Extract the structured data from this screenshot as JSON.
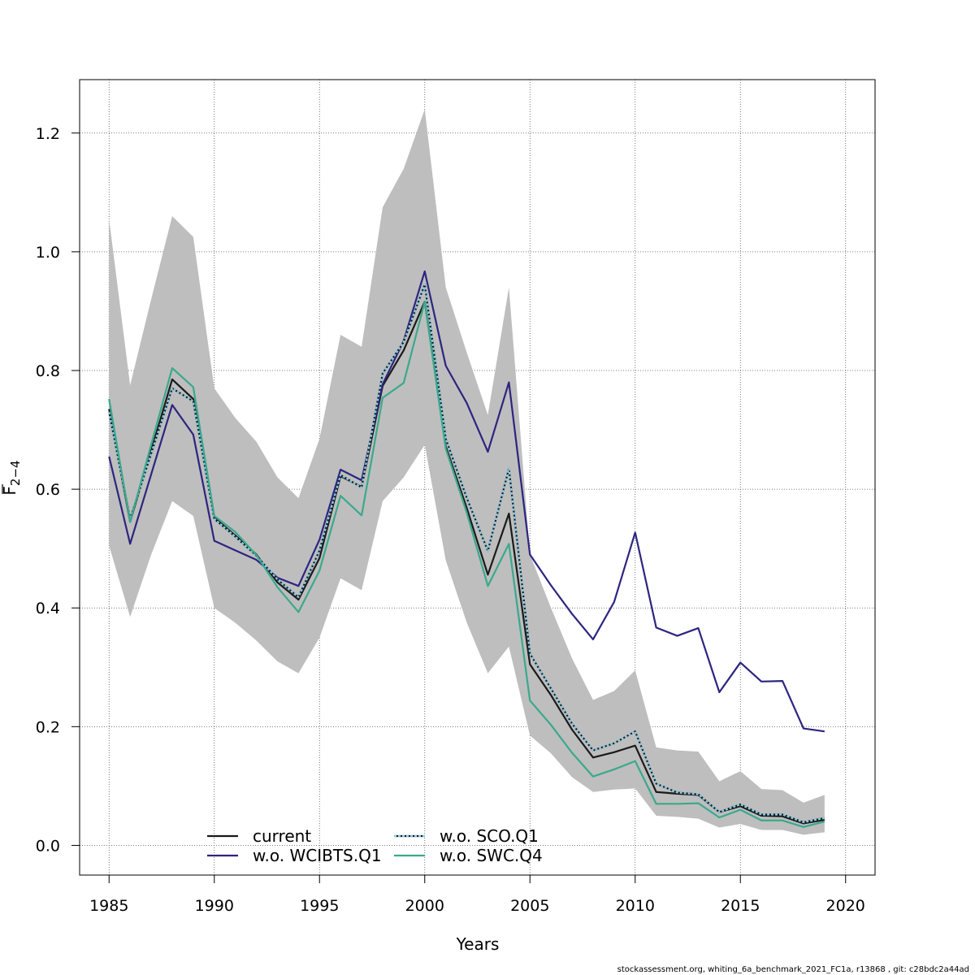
{
  "chart_data": {
    "type": "line",
    "xlabel": "Years",
    "ylabel_main": "F",
    "ylabel_sub": "2−4",
    "xlim": [
      1983.6,
      2021.4
    ],
    "ylim": [
      -0.05,
      1.29
    ],
    "x_ticks": [
      1985,
      1990,
      1995,
      2000,
      2005,
      2010,
      2015,
      2020
    ],
    "y_ticks": [
      0.0,
      0.2,
      0.4,
      0.6,
      0.8,
      1.0,
      1.2
    ],
    "x_tick_labels": [
      "1985",
      "1990",
      "1995",
      "2000",
      "2005",
      "2010",
      "2015",
      "2020"
    ],
    "y_tick_labels": [
      "0.0",
      "0.2",
      "0.4",
      "0.6",
      "0.8",
      "1.0",
      "1.2"
    ],
    "grid": true,
    "legend_position": "bottom-left",
    "x": [
      1985,
      1986,
      1987,
      1988,
      1989,
      1990,
      1991,
      1992,
      1993,
      1994,
      1995,
      1996,
      1997,
      1998,
      1999,
      2000,
      2001,
      2002,
      2003,
      2004,
      2005,
      2006,
      2007,
      2008,
      2009,
      2010,
      2011,
      2012,
      2013,
      2014,
      2015,
      2016,
      2017,
      2018,
      2019
    ],
    "band": {
      "color": "#bebebe",
      "upper": [
        1.055,
        0.775,
        0.92,
        1.06,
        1.025,
        0.77,
        0.72,
        0.68,
        0.62,
        0.585,
        0.685,
        0.86,
        0.84,
        1.075,
        1.14,
        1.24,
        0.94,
        0.83,
        0.725,
        0.94,
        0.49,
        0.4,
        0.315,
        0.245,
        0.26,
        0.295,
        0.165,
        0.16,
        0.158,
        0.108,
        0.125,
        0.095,
        0.093,
        0.072,
        0.085
      ],
      "lower": [
        0.505,
        0.385,
        0.49,
        0.58,
        0.555,
        0.4,
        0.375,
        0.345,
        0.31,
        0.29,
        0.35,
        0.45,
        0.43,
        0.58,
        0.62,
        0.675,
        0.48,
        0.375,
        0.29,
        0.335,
        0.185,
        0.155,
        0.115,
        0.09,
        0.094,
        0.096,
        0.05,
        0.048,
        0.045,
        0.03,
        0.036,
        0.026,
        0.026,
        0.018,
        0.022
      ]
    },
    "series": [
      {
        "name": "current",
        "color": "#1a1a1a",
        "width": 2.2,
        "dash": "",
        "values": [
          0.735,
          0.545,
          0.665,
          0.785,
          0.752,
          0.552,
          0.522,
          0.49,
          0.443,
          0.414,
          0.484,
          0.622,
          0.604,
          0.774,
          0.834,
          0.916,
          0.672,
          0.568,
          0.456,
          0.559,
          0.305,
          0.253,
          0.195,
          0.148,
          0.157,
          0.168,
          0.09,
          0.087,
          0.085,
          0.056,
          0.066,
          0.05,
          0.049,
          0.037,
          0.043
        ]
      },
      {
        "name": "w.o. WCIBTS.Q1",
        "color": "#2c2580",
        "width": 2.2,
        "dash": "",
        "values": [
          0.655,
          0.508,
          0.625,
          0.742,
          0.692,
          0.513,
          0.497,
          0.481,
          0.451,
          0.437,
          0.515,
          0.633,
          0.615,
          0.777,
          0.85,
          0.967,
          0.808,
          0.745,
          0.663,
          0.78,
          0.49,
          0.438,
          0.39,
          0.347,
          0.41,
          0.527,
          0.367,
          0.353,
          0.366,
          0.258,
          0.308,
          0.276,
          0.277,
          0.197,
          0.192
        ]
      },
      {
        "name": "w.o. SCO.Q1",
        "color": "#87ceeb",
        "width": 2.2,
        "dash": "3 2",
        "values": [
          0.73,
          0.55,
          0.66,
          0.77,
          0.748,
          0.55,
          0.52,
          0.488,
          0.448,
          0.418,
          0.497,
          0.624,
          0.603,
          0.795,
          0.848,
          0.945,
          0.685,
          0.585,
          0.496,
          0.635,
          0.323,
          0.264,
          0.205,
          0.16,
          0.172,
          0.192,
          0.104,
          0.089,
          0.086,
          0.056,
          0.069,
          0.052,
          0.052,
          0.039,
          0.046
        ]
      },
      {
        "name": "w.o. SWC.Q4",
        "color": "#3aa98c",
        "width": 2.2,
        "dash": "",
        "values": [
          0.752,
          0.545,
          0.675,
          0.804,
          0.772,
          0.555,
          0.528,
          0.489,
          0.435,
          0.393,
          0.463,
          0.589,
          0.556,
          0.754,
          0.779,
          0.916,
          0.668,
          0.56,
          0.437,
          0.508,
          0.244,
          0.203,
          0.156,
          0.116,
          0.128,
          0.142,
          0.07,
          0.07,
          0.071,
          0.047,
          0.06,
          0.042,
          0.042,
          0.031,
          0.04
        ]
      }
    ],
    "legend": {
      "col1": [
        "current",
        "w.o. WCIBTS.Q1"
      ],
      "col2": [
        "w.o. SCO.Q1",
        "w.o. SWC.Q4"
      ]
    }
  },
  "footer": "stockassessment.org, whiting_6a_benchmark_2021_FC1a, r13868 , git: c28bdc2a44ad"
}
